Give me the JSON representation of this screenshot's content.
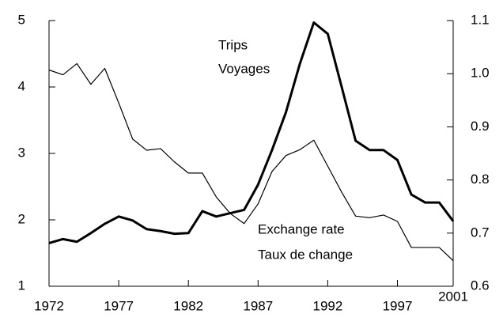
{
  "chart_data": {
    "type": "line",
    "x": [
      1972,
      1973,
      1974,
      1975,
      1976,
      1977,
      1978,
      1979,
      1980,
      1981,
      1982,
      1983,
      1984,
      1985,
      1986,
      1987,
      1988,
      1989,
      1990,
      1991,
      1992,
      1993,
      1994,
      1995,
      1996,
      1997,
      1998,
      1999,
      2000,
      2001
    ],
    "series": [
      {
        "name": "Trips",
        "color": "#000000",
        "width": 3,
        "values": [
          1.65,
          1.71,
          1.67,
          1.8,
          1.94,
          2.05,
          1.99,
          1.86,
          1.83,
          1.79,
          1.8,
          2.13,
          2.05,
          2.1,
          2.15,
          2.53,
          3.05,
          3.62,
          4.35,
          4.97,
          4.8,
          4.0,
          3.19,
          3.05,
          3.05,
          2.9,
          2.38,
          2.26,
          2.26,
          1.98
        ]
      },
      {
        "name": "Exchange rate",
        "color": "#000000",
        "width": 1.2,
        "axis": "y2",
        "values": [
          1.007,
          0.998,
          1.019,
          0.98,
          1.01,
          0.945,
          0.877,
          0.856,
          0.859,
          0.834,
          0.813,
          0.813,
          0.768,
          0.737,
          0.718,
          0.755,
          0.816,
          0.846,
          0.857,
          0.875,
          0.826,
          0.777,
          0.732,
          0.729,
          0.734,
          0.722,
          0.673,
          0.673,
          0.673,
          0.648
        ]
      }
    ],
    "annotations": [
      "Trips",
      "Voyages",
      "Exchange rate",
      "Taux de change"
    ],
    "xlim": [
      1972,
      2001
    ],
    "xticks": [
      1972,
      1977,
      1982,
      1987,
      1992,
      1997,
      2001
    ],
    "ylim": [
      1,
      5
    ],
    "yticks": [
      1,
      2,
      3,
      4,
      5
    ],
    "y2lim": [
      0.6,
      1.1
    ],
    "y2ticks": [
      0.6,
      0.7,
      0.8,
      0.9,
      {
        "value": 1.0,
        "label": "1.0"
      },
      1.1
    ],
    "grid": false
  }
}
